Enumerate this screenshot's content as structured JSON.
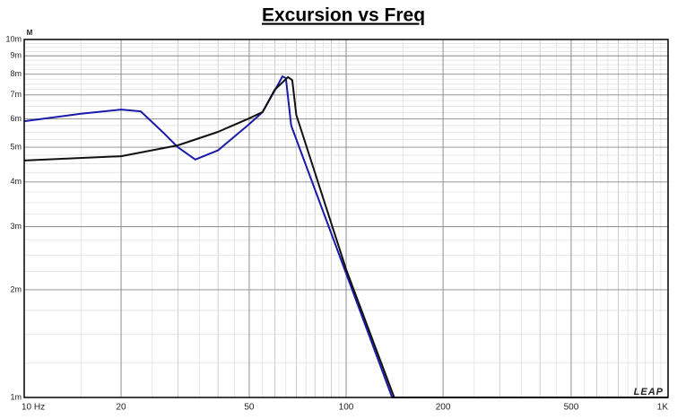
{
  "chart_data": {
    "type": "line",
    "title": "Excursion vs Freq",
    "y_unit": "M",
    "watermark": "LEAP",
    "xscale": "log",
    "yscale": "log",
    "grid": true,
    "minor_grid": true,
    "xlim": [
      10,
      1000
    ],
    "ylim": [
      0.001,
      0.01
    ],
    "xticks": [
      {
        "value": 10,
        "label": "10 Hz"
      },
      20,
      50,
      100,
      200,
      500,
      {
        "value": 1000,
        "label": "1K"
      }
    ],
    "yticks": [
      {
        "value": 0.001,
        "label": "1m"
      },
      {
        "value": 0.002,
        "label": "2m"
      },
      {
        "value": 0.003,
        "label": "3m"
      },
      {
        "value": 0.004,
        "label": "4m"
      },
      {
        "value": 0.005,
        "label": "5m"
      },
      {
        "value": 0.006,
        "label": "6m"
      },
      {
        "value": 0.007,
        "label": "7m"
      },
      {
        "value": 0.008,
        "label": "8m"
      },
      {
        "value": 0.009,
        "label": "9m"
      },
      {
        "value": 0.01,
        "label": "10m"
      }
    ],
    "series": [
      {
        "color": "#1a1aa8",
        "x": [
          10,
          15,
          20,
          23,
          27,
          30,
          34,
          40,
          50,
          55,
          60,
          63.4,
          65,
          67.5,
          100,
          139,
          200,
          500,
          1000
        ],
        "values": [
          0.00591,
          0.0062,
          0.00637,
          0.0063,
          0.0055,
          0.005,
          0.00462,
          0.0049,
          0.0058,
          0.00627,
          0.0072,
          0.00789,
          0.0078,
          0.00575,
          0.00222,
          0.001,
          0.001,
          0.001,
          0.001
        ]
      },
      {
        "color": "#111111",
        "x": [
          10,
          20,
          30,
          40,
          50,
          55,
          60,
          66,
          68,
          70,
          100,
          141,
          200,
          500,
          1000
        ],
        "values": [
          0.00459,
          0.00472,
          0.00506,
          0.00552,
          0.00602,
          0.00627,
          0.00724,
          0.00785,
          0.0077,
          0.00616,
          0.00228,
          0.001,
          0.001,
          0.001,
          0.001
        ]
      }
    ]
  }
}
